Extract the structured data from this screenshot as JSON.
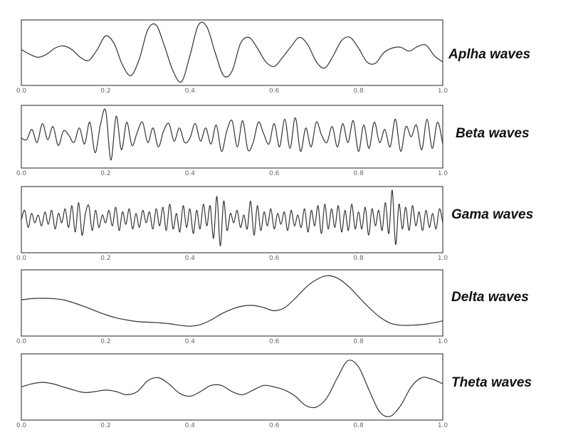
{
  "chart_data": [
    {
      "type": "line",
      "title": "",
      "legend_label": "Aplha waves",
      "xlim": [
        0.0,
        1.0
      ],
      "xticks": [
        "0.0",
        "0.2",
        "0.4",
        "0.6",
        "0.8",
        "1.0"
      ],
      "series": [
        {
          "x": [
            0.0,
            0.02,
            0.04,
            0.06,
            0.08,
            0.1,
            0.12,
            0.14,
            0.16,
            0.18,
            0.2,
            0.22,
            0.24,
            0.26,
            0.28,
            0.3,
            0.32,
            0.34,
            0.36,
            0.38,
            0.4,
            0.42,
            0.44,
            0.46,
            0.48,
            0.5,
            0.52,
            0.54,
            0.56,
            0.58,
            0.6,
            0.62,
            0.64,
            0.66,
            0.68,
            0.7,
            0.72,
            0.74,
            0.76,
            0.78,
            0.8,
            0.82,
            0.84,
            0.86,
            0.88,
            0.9,
            0.92,
            0.94,
            0.96,
            0.98,
            1.0
          ],
          "y": [
            0.1,
            -0.05,
            -0.15,
            -0.05,
            0.15,
            0.22,
            0.1,
            -0.15,
            -0.25,
            0.1,
            0.55,
            0.3,
            -0.4,
            -0.75,
            -0.2,
            0.75,
            0.9,
            0.2,
            -0.6,
            -0.95,
            -0.1,
            0.9,
            0.85,
            0.0,
            -0.75,
            -0.6,
            0.3,
            0.5,
            0.15,
            -0.3,
            -0.45,
            -0.15,
            0.2,
            0.5,
            0.25,
            -0.3,
            -0.5,
            -0.1,
            0.4,
            0.5,
            0.15,
            -0.3,
            -0.35,
            0.0,
            0.15,
            0.18,
            0.05,
            0.2,
            0.25,
            -0.1,
            -0.3
          ]
        }
      ]
    },
    {
      "type": "line",
      "title": "",
      "legend_label": "Beta waves",
      "xlim": [
        0.0,
        1.0
      ],
      "xticks": [
        "0.0",
        "0.2",
        "0.4",
        "0.6",
        "0.8",
        "1.0"
      ],
      "series": [
        {
          "x": [
            0.0,
            0.0125,
            0.025,
            0.0375,
            0.05,
            0.0625,
            0.075,
            0.0875,
            0.1,
            0.1125,
            0.125,
            0.1375,
            0.15,
            0.1625,
            0.175,
            0.1875,
            0.2,
            0.2125,
            0.225,
            0.2375,
            0.25,
            0.2625,
            0.275,
            0.2875,
            0.3,
            0.3125,
            0.325,
            0.3375,
            0.35,
            0.3625,
            0.375,
            0.3875,
            0.4,
            0.4125,
            0.425,
            0.4375,
            0.45,
            0.4625,
            0.475,
            0.4875,
            0.5,
            0.5125,
            0.525,
            0.5375,
            0.55,
            0.5625,
            0.575,
            0.5875,
            0.6,
            0.6125,
            0.625,
            0.6375,
            0.65,
            0.6625,
            0.675,
            0.6875,
            0.7,
            0.7125,
            0.725,
            0.7375,
            0.75,
            0.7625,
            0.775,
            0.7875,
            0.8,
            0.8125,
            0.825,
            0.8375,
            0.85,
            0.8625,
            0.875,
            0.8875,
            0.9,
            0.9125,
            0.925,
            0.9375,
            0.95,
            0.9625,
            0.975,
            0.9875,
            1.0
          ],
          "y": [
            -0.05,
            -0.1,
            0.25,
            -0.2,
            0.45,
            -0.1,
            0.35,
            -0.3,
            0.2,
            0.05,
            -0.2,
            0.3,
            -0.25,
            0.5,
            -0.55,
            0.4,
            0.9,
            -0.8,
            0.7,
            -0.45,
            0.5,
            -0.3,
            0.15,
            0.5,
            -0.2,
            0.3,
            -0.35,
            0.2,
            0.45,
            -0.15,
            0.3,
            -0.2,
            -0.05,
            0.45,
            -0.15,
            0.3,
            -0.25,
            0.4,
            -0.5,
            0.2,
            0.55,
            -0.35,
            0.55,
            -0.45,
            -0.2,
            0.5,
            0.1,
            -0.25,
            0.45,
            -0.35,
            0.6,
            -0.4,
            0.65,
            -0.5,
            0.3,
            -0.35,
            0.5,
            0.05,
            -0.2,
            0.35,
            -0.35,
            0.45,
            -0.2,
            0.55,
            -0.5,
            0.4,
            -0.4,
            0.5,
            -0.2,
            0.25,
            -0.35,
            0.6,
            -0.5,
            0.35,
            0.0,
            0.4,
            -0.45,
            0.6,
            -0.4,
            0.5,
            -0.25
          ]
        }
      ]
    },
    {
      "type": "line",
      "title": "",
      "legend_label": "Gama waves",
      "xlim": [
        0.0,
        1.0
      ],
      "xticks": [
        "0.0",
        "0.2",
        "0.4",
        "0.6",
        "0.8",
        "1.0"
      ],
      "series": [
        {
          "x": [
            0.0,
            0.008,
            0.016,
            0.024,
            0.032,
            0.04,
            0.048,
            0.056,
            0.064,
            0.072,
            0.08,
            0.088,
            0.096,
            0.104,
            0.112,
            0.12,
            0.128,
            0.136,
            0.144,
            0.152,
            0.16,
            0.168,
            0.176,
            0.184,
            0.192,
            0.2,
            0.208,
            0.216,
            0.224,
            0.232,
            0.24,
            0.248,
            0.256,
            0.264,
            0.272,
            0.28,
            0.288,
            0.296,
            0.304,
            0.312,
            0.32,
            0.328,
            0.336,
            0.344,
            0.352,
            0.36,
            0.368,
            0.376,
            0.384,
            0.392,
            0.4,
            0.408,
            0.416,
            0.424,
            0.432,
            0.44,
            0.448,
            0.456,
            0.464,
            0.472,
            0.48,
            0.488,
            0.496,
            0.504,
            0.512,
            0.52,
            0.528,
            0.536,
            0.544,
            0.552,
            0.56,
            0.568,
            0.576,
            0.584,
            0.592,
            0.6,
            0.608,
            0.616,
            0.624,
            0.632,
            0.64,
            0.648,
            0.656,
            0.664,
            0.672,
            0.68,
            0.688,
            0.696,
            0.704,
            0.712,
            0.72,
            0.728,
            0.736,
            0.744,
            0.752,
            0.76,
            0.768,
            0.776,
            0.784,
            0.792,
            0.8,
            0.808,
            0.816,
            0.824,
            0.832,
            0.84,
            0.848,
            0.856,
            0.864,
            0.872,
            0.88,
            0.888,
            0.896,
            0.904,
            0.912,
            0.92,
            0.928,
            0.936,
            0.944,
            0.952,
            0.96,
            0.968,
            0.976,
            0.984,
            0.992,
            1.0
          ],
          "y": [
            0.0,
            0.3,
            -0.25,
            0.2,
            -0.1,
            0.15,
            -0.2,
            0.25,
            -0.15,
            0.3,
            -0.3,
            0.2,
            -0.1,
            0.35,
            -0.25,
            0.45,
            -0.4,
            0.55,
            -0.5,
            0.2,
            0.45,
            -0.35,
            0.3,
            -0.25,
            0.15,
            -0.1,
            0.3,
            -0.2,
            0.4,
            -0.35,
            0.25,
            -0.15,
            0.35,
            -0.3,
            0.2,
            -0.25,
            0.3,
            -0.1,
            0.25,
            -0.3,
            0.35,
            -0.2,
            0.4,
            -0.35,
            0.5,
            -0.3,
            0.2,
            -0.4,
            0.45,
            -0.25,
            0.35,
            -0.45,
            0.3,
            -0.3,
            0.5,
            -0.2,
            0.45,
            -0.6,
            0.75,
            -0.85,
            0.6,
            -0.35,
            0.2,
            -0.1,
            0.3,
            -0.25,
            0.15,
            -0.3,
            0.6,
            -0.5,
            0.45,
            -0.35,
            0.25,
            -0.2,
            0.35,
            -0.3,
            0.2,
            -0.15,
            0.25,
            -0.35,
            0.3,
            -0.2,
            0.15,
            -0.25,
            0.35,
            -0.4,
            0.3,
            -0.2,
            0.45,
            -0.45,
            0.5,
            -0.3,
            0.35,
            -0.25,
            0.45,
            -0.4,
            0.3,
            -0.35,
            0.5,
            -0.3,
            0.25,
            -0.3,
            0.4,
            -0.5,
            0.35,
            -0.2,
            0.3,
            -0.35,
            0.55,
            -0.45,
            0.95,
            -0.8,
            0.5,
            -0.3,
            0.4,
            -0.35,
            0.45,
            -0.2,
            0.25,
            -0.35,
            0.3,
            -0.25,
            0.2,
            -0.3,
            0.35,
            -0.1
          ]
        }
      ]
    },
    {
      "type": "line",
      "title": "",
      "legend_label": "Delta waves",
      "xlim": [
        0.0,
        1.0
      ],
      "xticks": [
        "0.0",
        "0.2",
        "0.4",
        "0.6",
        "0.8",
        "1.0"
      ],
      "series": [
        {
          "x": [
            0.0,
            0.025,
            0.05,
            0.075,
            0.1,
            0.125,
            0.15,
            0.175,
            0.2,
            0.225,
            0.25,
            0.275,
            0.3,
            0.325,
            0.35,
            0.375,
            0.4,
            0.425,
            0.45,
            0.475,
            0.5,
            0.525,
            0.55,
            0.575,
            0.6,
            0.625,
            0.65,
            0.675,
            0.7,
            0.725,
            0.75,
            0.775,
            0.8,
            0.825,
            0.85,
            0.875,
            0.9,
            0.925,
            0.95,
            0.975,
            1.0
          ],
          "y": [
            0.1,
            0.14,
            0.15,
            0.14,
            0.1,
            0.0,
            -0.12,
            -0.25,
            -0.38,
            -0.48,
            -0.55,
            -0.6,
            -0.62,
            -0.64,
            -0.67,
            -0.72,
            -0.75,
            -0.7,
            -0.55,
            -0.35,
            -0.2,
            -0.1,
            -0.08,
            -0.15,
            -0.25,
            -0.15,
            0.15,
            0.5,
            0.75,
            0.88,
            0.8,
            0.55,
            0.2,
            -0.15,
            -0.45,
            -0.65,
            -0.72,
            -0.72,
            -0.7,
            -0.65,
            -0.58
          ]
        }
      ]
    },
    {
      "type": "line",
      "title": "",
      "legend_label": "Theta waves",
      "xlim": [
        0.0,
        1.0
      ],
      "xticks": [
        "0.0",
        "0.2",
        "0.4",
        "0.6",
        "0.8",
        "1.0"
      ],
      "series": [
        {
          "x": [
            0.0,
            0.025,
            0.05,
            0.075,
            0.1,
            0.125,
            0.15,
            0.175,
            0.2,
            0.225,
            0.25,
            0.275,
            0.3,
            0.325,
            0.35,
            0.375,
            0.4,
            0.425,
            0.45,
            0.475,
            0.5,
            0.525,
            0.55,
            0.575,
            0.6,
            0.625,
            0.65,
            0.675,
            0.7,
            0.725,
            0.75,
            0.775,
            0.8,
            0.825,
            0.85,
            0.875,
            0.9,
            0.925,
            0.95,
            0.975,
            1.0
          ],
          "y": [
            0.0,
            0.1,
            0.15,
            0.1,
            0.0,
            -0.1,
            -0.18,
            -0.15,
            -0.1,
            -0.15,
            -0.25,
            -0.15,
            0.2,
            0.3,
            0.1,
            -0.2,
            -0.3,
            -0.15,
            0.05,
            0.05,
            -0.15,
            -0.25,
            -0.1,
            0.05,
            0.0,
            -0.1,
            -0.3,
            -0.6,
            -0.65,
            -0.35,
            0.3,
            0.85,
            0.65,
            -0.1,
            -0.8,
            -0.95,
            -0.6,
            0.0,
            0.3,
            0.25,
            0.1
          ]
        }
      ]
    }
  ]
}
